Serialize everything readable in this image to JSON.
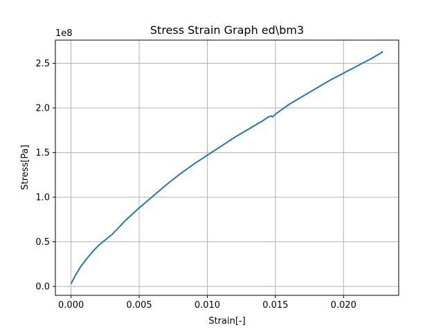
{
  "chart_data": {
    "type": "line",
    "title": "Stress Strain Graph ed\\bm3",
    "xlabel": "Strain[-]",
    "ylabel": "Stress[Pa]",
    "y_offset_text": "1e8",
    "xlim": [
      -0.00115,
      0.02405
    ],
    "ylim": [
      -0.1,
      2.76
    ],
    "grid": true,
    "line_color": "#1f77b4",
    "x_ticks": [
      0.0,
      0.005,
      0.01,
      0.015,
      0.02
    ],
    "x_tick_labels": [
      "0.000",
      "0.005",
      "0.010",
      "0.015",
      "0.020"
    ],
    "y_ticks": [
      0.0,
      0.5,
      1.0,
      1.5,
      2.0,
      2.5
    ],
    "y_tick_labels": [
      "0.0",
      "0.5",
      "1.0",
      "1.5",
      "2.0",
      "2.5"
    ],
    "series": [
      {
        "x": [
          0.0,
          0.0003,
          0.0007,
          0.0012,
          0.0017,
          0.0021,
          0.0025,
          0.003,
          0.004,
          0.005,
          0.006,
          0.007,
          0.008,
          0.009,
          0.01,
          0.011,
          0.012,
          0.013,
          0.014,
          0.0145,
          0.0147,
          0.0148,
          0.015,
          0.016,
          0.017,
          0.018,
          0.019,
          0.02,
          0.021,
          0.022,
          0.0229
        ],
        "y": [
          0.03,
          0.12,
          0.22,
          0.32,
          0.41,
          0.47,
          0.52,
          0.58,
          0.74,
          0.88,
          1.01,
          1.14,
          1.26,
          1.37,
          1.47,
          1.57,
          1.67,
          1.76,
          1.85,
          1.9,
          1.91,
          1.9,
          1.93,
          2.04,
          2.13,
          2.22,
          2.31,
          2.39,
          2.47,
          2.55,
          2.63
        ]
      }
    ]
  }
}
